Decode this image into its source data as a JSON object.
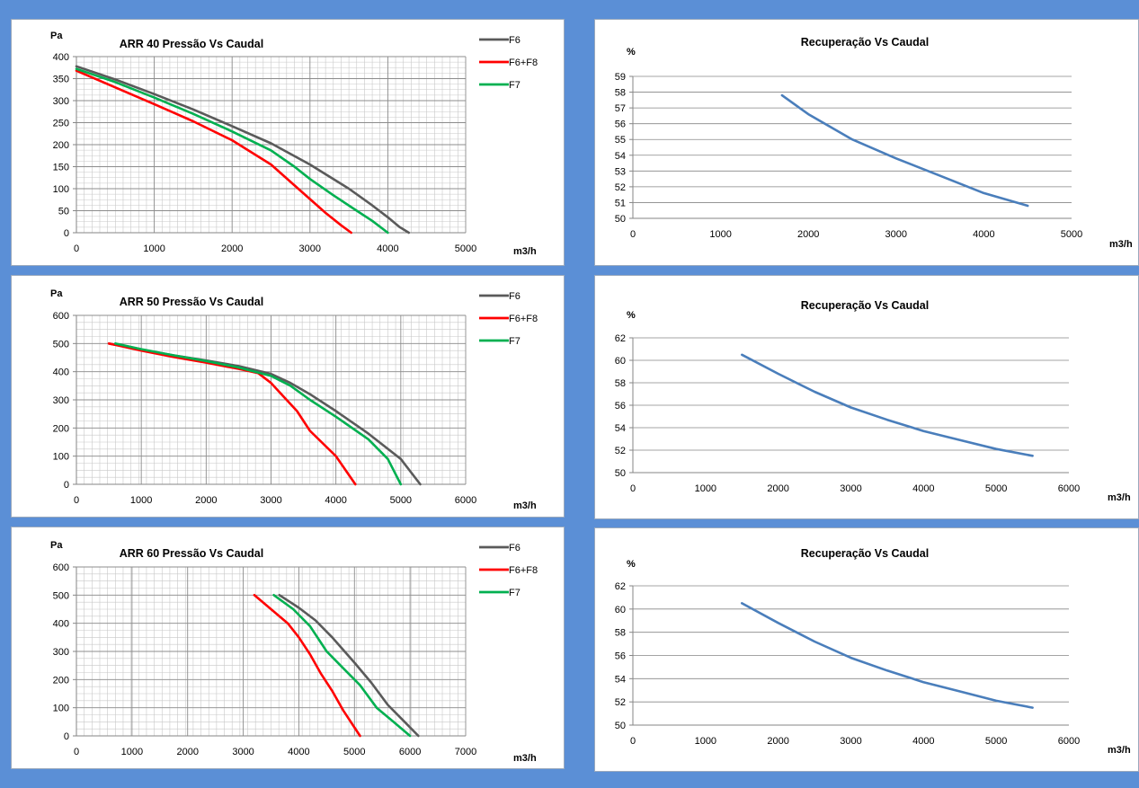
{
  "chart_data": [
    {
      "type": "line",
      "title": "ARR  40   Pressão Vs Caudal",
      "xlabel": "m3/h",
      "ylabel": "Pa",
      "xlim": [
        0,
        5000
      ],
      "ylim": [
        0,
        400
      ],
      "xticks": [
        0,
        1000,
        2000,
        3000,
        4000,
        5000
      ],
      "yticks": [
        0,
        50,
        100,
        150,
        200,
        250,
        300,
        350,
        400
      ],
      "grid": "dense",
      "legend_position": "top-right",
      "series": [
        {
          "name": "F6",
          "color": "#5a5a5a",
          "x": [
            0,
            500,
            1000,
            1500,
            2000,
            2500,
            3000,
            3500,
            3800,
            4000,
            4150,
            4270
          ],
          "y": [
            378,
            348,
            315,
            280,
            242,
            203,
            155,
            100,
            62,
            35,
            13,
            0
          ]
        },
        {
          "name": "F6+F8",
          "color": "#ff0000",
          "x": [
            0,
            500,
            1000,
            1500,
            2000,
            2500,
            2900,
            3200,
            3400,
            3530
          ],
          "y": [
            368,
            330,
            292,
            253,
            210,
            155,
            92,
            45,
            17,
            0
          ]
        },
        {
          "name": "F7",
          "color": "#00b050",
          "x": [
            0,
            500,
            1000,
            1500,
            2000,
            2500,
            2800,
            3000,
            3300,
            3600,
            3800,
            4000
          ],
          "y": [
            372,
            342,
            307,
            270,
            230,
            187,
            150,
            122,
            85,
            50,
            27,
            0
          ]
        }
      ]
    },
    {
      "type": "line",
      "title": "Recuperação Vs Caudal",
      "xlabel": "m3/h",
      "ylabel": "%",
      "xlim": [
        0,
        5000
      ],
      "ylim": [
        50,
        59
      ],
      "xticks": [
        0,
        1000,
        2000,
        3000,
        4000,
        5000
      ],
      "yticks": [
        50,
        51,
        52,
        53,
        54,
        55,
        56,
        57,
        58,
        59
      ],
      "grid": "horizontal",
      "series": [
        {
          "color": "#4a7ebb",
          "x": [
            1700,
            2000,
            2500,
            3000,
            3500,
            4000,
            4500
          ],
          "y": [
            57.8,
            56.6,
            55.0,
            53.8,
            52.7,
            51.6,
            50.8
          ]
        }
      ]
    },
    {
      "type": "line",
      "title": "ARR  50   Pressão Vs Caudal",
      "xlabel": "m3/h",
      "ylabel": "Pa",
      "xlim": [
        0,
        6000
      ],
      "ylim": [
        0,
        600
      ],
      "xticks": [
        0,
        1000,
        2000,
        3000,
        4000,
        5000,
        6000
      ],
      "yticks": [
        0,
        100,
        200,
        300,
        400,
        500,
        600
      ],
      "grid": "dense",
      "legend_position": "top-right",
      "series": [
        {
          "name": "F6",
          "color": "#5a5a5a",
          "x": [
            500,
            1000,
            1500,
            2000,
            2500,
            3000,
            3300,
            3600,
            4000,
            4500,
            5000,
            5300
          ],
          "y": [
            500,
            478,
            458,
            440,
            420,
            392,
            360,
            320,
            260,
            180,
            90,
            0
          ]
        },
        {
          "name": "F6+F8",
          "color": "#ff0000",
          "x": [
            500,
            1000,
            1500,
            2000,
            2500,
            2800,
            3000,
            3200,
            3400,
            3600,
            4000,
            4300
          ],
          "y": [
            500,
            475,
            452,
            432,
            410,
            395,
            360,
            310,
            260,
            190,
            100,
            0
          ]
        },
        {
          "name": "F7",
          "color": "#00b050",
          "x": [
            600,
            1000,
            1500,
            2000,
            2500,
            3000,
            3300,
            3600,
            4000,
            4500,
            4800,
            5000
          ],
          "y": [
            500,
            480,
            458,
            438,
            415,
            385,
            350,
            300,
            240,
            160,
            90,
            0
          ]
        }
      ]
    },
    {
      "type": "line",
      "title": "Recuperação Vs Caudal",
      "xlabel": "m3/h",
      "ylabel": "%",
      "xlim": [
        0,
        6000
      ],
      "ylim": [
        50,
        62
      ],
      "xticks": [
        0,
        1000,
        2000,
        3000,
        4000,
        5000,
        6000
      ],
      "yticks": [
        50,
        52,
        54,
        56,
        58,
        60,
        62
      ],
      "grid": "horizontal",
      "series": [
        {
          "color": "#4a7ebb",
          "x": [
            1500,
            2000,
            2500,
            3000,
            3500,
            4000,
            4500,
            5000,
            5500
          ],
          "y": [
            60.5,
            58.8,
            57.2,
            55.8,
            54.7,
            53.7,
            52.9,
            52.1,
            51.5
          ]
        }
      ]
    },
    {
      "type": "line",
      "title": "ARR  60   Pressão Vs Caudal",
      "xlabel": "m3/h",
      "ylabel": "Pa",
      "xlim": [
        0,
        7000
      ],
      "ylim": [
        0,
        600
      ],
      "xticks": [
        0,
        1000,
        2000,
        3000,
        4000,
        5000,
        6000,
        7000
      ],
      "yticks": [
        0,
        100,
        200,
        300,
        400,
        500,
        600
      ],
      "grid": "dense",
      "legend_position": "top-right",
      "series": [
        {
          "name": "F6",
          "color": "#5a5a5a",
          "x": [
            3650,
            4000,
            4300,
            4600,
            5000,
            5300,
            5600,
            5900,
            6150
          ],
          "y": [
            500,
            455,
            410,
            350,
            260,
            190,
            110,
            50,
            0
          ]
        },
        {
          "name": "F6+F8",
          "color": "#ff0000",
          "x": [
            3200,
            3500,
            3800,
            4000,
            4200,
            4400,
            4600,
            4800,
            5000,
            5100
          ],
          "y": [
            500,
            450,
            400,
            350,
            290,
            220,
            160,
            90,
            30,
            0
          ]
        },
        {
          "name": "F7",
          "color": "#00b050",
          "x": [
            3550,
            3900,
            4200,
            4500,
            4800,
            5100,
            5400,
            5700,
            6000
          ],
          "y": [
            500,
            450,
            390,
            300,
            240,
            180,
            100,
            50,
            0
          ]
        }
      ]
    },
    {
      "type": "line",
      "title": "Recuperação Vs Caudal",
      "xlabel": "m3/h",
      "ylabel": "%",
      "xlim": [
        0,
        6000
      ],
      "ylim": [
        50,
        62
      ],
      "xticks": [
        0,
        1000,
        2000,
        3000,
        4000,
        5000,
        6000
      ],
      "yticks": [
        50,
        52,
        54,
        56,
        58,
        60,
        62
      ],
      "grid": "horizontal",
      "series": [
        {
          "color": "#4a7ebb",
          "x": [
            1500,
            2000,
            2500,
            3000,
            3500,
            4000,
            4500,
            5000,
            5500
          ],
          "y": [
            60.5,
            58.8,
            57.2,
            55.8,
            54.7,
            53.7,
            52.9,
            52.1,
            51.5
          ]
        }
      ]
    }
  ]
}
